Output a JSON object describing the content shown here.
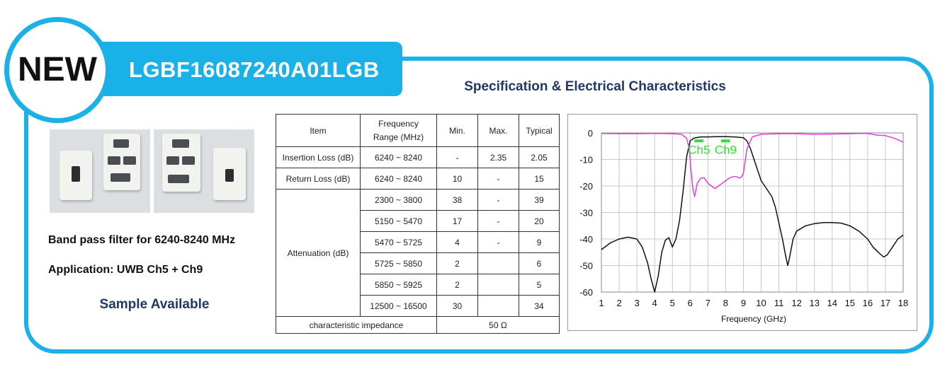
{
  "badge": "NEW",
  "part_number": "LGBF16087240A01LGB",
  "spec_title": "Specification & Electrical Characteristics",
  "description": "Band pass filter for 6240-8240 MHz",
  "application": "Application: UWB Ch5 + Ch9",
  "sample": "Sample Available",
  "table": {
    "headers": {
      "item": "Item",
      "freq_line1": "Frequency",
      "freq_line2": "Range (MHz)",
      "min": "Min.",
      "max": "Max.",
      "typical": "Typical"
    },
    "insertion_loss": {
      "item": "Insertion Loss (dB)",
      "range": "6240 ~ 8240",
      "min": "-",
      "max": "2.35",
      "typical": "2.05"
    },
    "return_loss": {
      "item": "Return Loss (dB)",
      "range": "6240 ~ 8240",
      "min": "10",
      "max": "-",
      "typical": "15"
    },
    "attenuation_label": "Attenuation (dB)",
    "attenuation": [
      {
        "range": "2300 ~ 3800",
        "min": "38",
        "max": "-",
        "typical": "39"
      },
      {
        "range": "5150 ~ 5470",
        "min": "17",
        "max": "-",
        "typical": "20"
      },
      {
        "range": "5470 ~ 5725",
        "min": "4",
        "max": "-",
        "typical": "9"
      },
      {
        "range": "5725 ~ 5850",
        "min": "2",
        "max": "",
        "typical": "6"
      },
      {
        "range": "5850 ~ 5925",
        "min": "2",
        "max": "",
        "typical": "5"
      },
      {
        "range": "12500 ~ 16500",
        "min": "30",
        "max": "",
        "typical": "34"
      }
    ],
    "impedance_label": "characteristic impedance",
    "impedance_value": "50 Ω"
  },
  "chart_data": {
    "type": "line",
    "title": "",
    "xlabel": "Frequency (GHz)",
    "ylabel": "",
    "xlim": [
      1,
      18
    ],
    "ylim": [
      -60,
      0
    ],
    "xticks": [
      1,
      2,
      3,
      4,
      5,
      6,
      7,
      8,
      9,
      10,
      11,
      12,
      13,
      14,
      15,
      16,
      17,
      18
    ],
    "yticks": [
      0,
      -10,
      -20,
      -30,
      -40,
      -50,
      -60
    ],
    "grid": true,
    "series": [
      {
        "color": "#111111",
        "x": [
          1,
          1.5,
          2,
          2.5,
          3,
          3.3,
          3.6,
          3.8,
          4,
          4.2,
          4.4,
          4.6,
          4.8,
          5,
          5.2,
          5.4,
          5.6,
          5.8,
          6,
          6.2,
          6.4,
          6.6,
          7,
          7.5,
          8,
          8.5,
          9,
          9.2,
          9.4,
          9.6,
          9.8,
          10,
          10.2,
          10.4,
          10.6,
          10.8,
          11,
          11.2,
          11.4,
          11.5,
          11.6,
          11.8,
          12,
          12.5,
          13,
          13.5,
          14,
          14.5,
          15,
          15.5,
          16,
          16.3,
          16.6,
          16.9,
          17.1,
          17.4,
          17.7,
          18
        ],
        "y": [
          -44,
          -41.5,
          -40,
          -39.3,
          -40,
          -43,
          -49,
          -55,
          -60,
          -54,
          -45,
          -40.5,
          -39.5,
          -43,
          -40,
          -33,
          -22,
          -9,
          -3,
          -2,
          -1.7,
          -1.5,
          -1.5,
          -1.4,
          -1.4,
          -1.5,
          -1.8,
          -3,
          -6,
          -10,
          -14,
          -18,
          -20,
          -22,
          -24,
          -28,
          -34,
          -40,
          -47,
          -50,
          -47,
          -40,
          -37,
          -35,
          -34.2,
          -33.8,
          -33.8,
          -34,
          -35,
          -37,
          -40,
          -43,
          -45,
          -46.8,
          -46,
          -43,
          -40,
          -38.5
        ]
      },
      {
        "color": "#e040e0",
        "x": [
          1,
          2,
          3,
          4,
          5,
          5.5,
          5.8,
          5.95,
          6.05,
          6.15,
          6.25,
          6.4,
          6.6,
          6.8,
          7,
          7.2,
          7.4,
          7.6,
          7.8,
          8,
          8.2,
          8.4,
          8.6,
          8.8,
          8.9,
          9,
          9.2,
          9.5,
          10,
          11,
          12,
          13,
          14,
          15,
          15.5,
          16,
          16.5,
          17,
          17.5,
          18
        ],
        "y": [
          -0.2,
          -0.3,
          -0.3,
          -0.2,
          -0.3,
          -0.5,
          -2,
          -6,
          -14,
          -21,
          -24,
          -19,
          -17,
          -17,
          -19,
          -20,
          -21,
          -20,
          -19,
          -18,
          -17,
          -16.5,
          -16.5,
          -17,
          -16.5,
          -15,
          -6,
          -1.5,
          -0.5,
          -0.3,
          -0.3,
          -0.5,
          -0.4,
          -0.3,
          -0.2,
          -0.2,
          -0.8,
          -1,
          -2,
          -3.5
        ]
      }
    ],
    "annotations": [
      {
        "text": "Ch5",
        "color": "#33dd33",
        "x": 6.5,
        "bar": [
          6.24,
          6.74
        ]
      },
      {
        "text": "Ch9",
        "color": "#33dd33",
        "x": 8.0,
        "bar": [
          7.74,
          8.24
        ]
      }
    ]
  }
}
